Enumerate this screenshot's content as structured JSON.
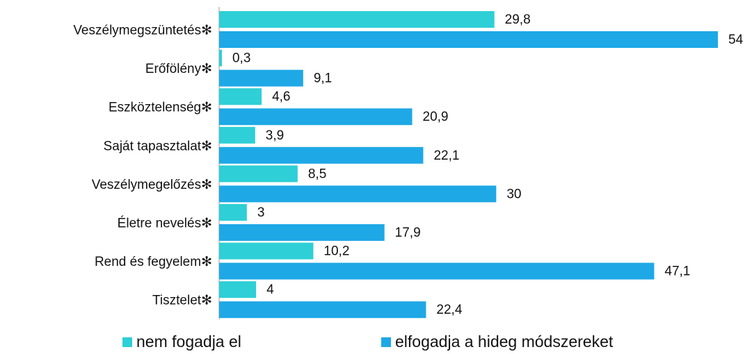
{
  "chart_data": {
    "type": "bar",
    "orientation": "horizontal",
    "categories": [
      "Veszélymegszüntetés✻",
      "Erőfölény✻",
      "Eszköztelenség✻",
      "Saját tapasztalat✻",
      "Veszélymegelőzés✻",
      "Életre nevelés✻",
      "Rend és fegyelem✻",
      "Tisztelet✻"
    ],
    "series": [
      {
        "name": "nem fogadja el",
        "color": "#2ecfd6",
        "values": [
          29.8,
          0.3,
          4.6,
          3.9,
          8.5,
          3,
          10.2,
          4
        ],
        "value_labels": [
          "29,8",
          "0,3",
          "4,6",
          "3,9",
          "8,5",
          "3",
          "10,2",
          "4"
        ]
      },
      {
        "name": "elfogadja a hideg módszereket",
        "color": "#1ea8e6",
        "values": [
          54,
          9.1,
          20.9,
          22.1,
          30,
          17.9,
          47.1,
          22.4
        ],
        "value_labels": [
          "54",
          "9,1",
          "20,9",
          "22,1",
          "30",
          "17,9",
          "47,1",
          "22,4"
        ]
      }
    ],
    "xlim": [
      0,
      54
    ],
    "legend": "bottom"
  }
}
